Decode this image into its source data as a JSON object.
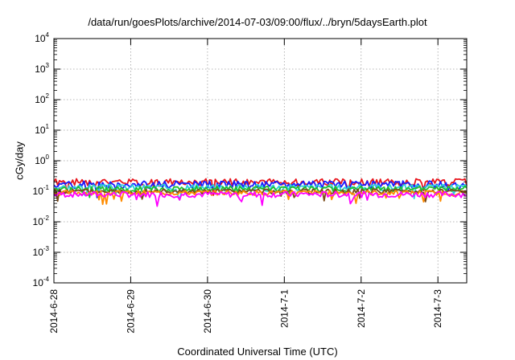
{
  "chart_data": {
    "type": "line",
    "title": "/data/run/goesPlots/archive/2014-07-03/09:00/flux/../bryn/5daysEarth.plot",
    "xlabel": "Coordinated Universal Time (UTC)",
    "ylabel": "cGy/day",
    "yscale": "log",
    "ylim": [
      0.0001,
      10000
    ],
    "y_ticks": [
      {
        "value": 0.0001,
        "base": "10",
        "exp": "-4"
      },
      {
        "value": 0.001,
        "base": "10",
        "exp": "-3"
      },
      {
        "value": 0.01,
        "base": "10",
        "exp": "-2"
      },
      {
        "value": 0.1,
        "base": "10",
        "exp": "-1"
      },
      {
        "value": 1,
        "base": "10",
        "exp": "0"
      },
      {
        "value": 10,
        "base": "10",
        "exp": "1"
      },
      {
        "value": 100,
        "base": "10",
        "exp": "2"
      },
      {
        "value": 1000,
        "base": "10",
        "exp": "3"
      },
      {
        "value": 10000,
        "base": "10",
        "exp": "4"
      }
    ],
    "x_range": [
      "2014-06-28 00:00",
      "2014-07-03 09:00"
    ],
    "x_ticks": [
      "2014-6-28",
      "2014-6-29",
      "2014-6-30",
      "2014-7-1",
      "2014-7-2",
      "2014-7-3"
    ],
    "grid": true,
    "legend": "none",
    "series": [
      {
        "color": "#e8141c",
        "base": 0.2,
        "amp": 0.28,
        "seed": 1
      },
      {
        "color": "#1a1aff",
        "base": 0.17,
        "amp": 0.28,
        "seed": 2
      },
      {
        "color": "#2ad0d8",
        "base": 0.135,
        "amp": 0.25,
        "seed": 3
      },
      {
        "color": "#1fbf2b",
        "base": 0.12,
        "amp": 0.22,
        "seed": 4
      },
      {
        "color": "#7a4a1a",
        "base": 0.1,
        "amp": 0.18,
        "seed": 5
      },
      {
        "color": "#ff8c00",
        "base": 0.09,
        "amp": 0.18,
        "seed": 6
      },
      {
        "color": "#ff00ff",
        "base": 0.08,
        "amp": 0.22,
        "seed": 7
      }
    ]
  }
}
